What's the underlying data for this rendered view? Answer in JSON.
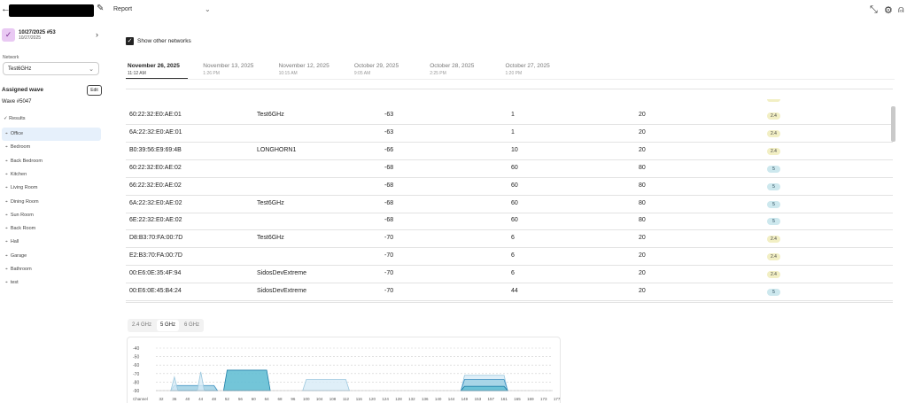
{
  "header": {
    "report_label": "Report"
  },
  "sidebar": {
    "card_title": "10/27/2025 #53",
    "card_subtitle": "10/27/2025",
    "network_label": "Network",
    "network_value": "Test6GHz",
    "assigned_label": "Assigned wave",
    "edit_label": "Edit",
    "wave_label": "Wave #5047",
    "results_label": "Results",
    "rooms": [
      "Office",
      "Bedroom",
      "Back Bedroom",
      "Kitchen",
      "Living Room",
      "Dining Room",
      "Sun Room",
      "Back Room",
      "Hall",
      "Garage",
      "Bathroom",
      "test"
    ],
    "active_room": "Office"
  },
  "main": {
    "show_other_label": "Show other networks",
    "show_other_checked": true,
    "dates": [
      {
        "date": "November 26, 2025",
        "time": "11:12 AM",
        "active": true
      },
      {
        "date": "November 13, 2025",
        "time": "1:26 PM"
      },
      {
        "date": "November 12, 2025",
        "time": "10:15 AM"
      },
      {
        "date": "October 29, 2025",
        "time": "9:05 AM"
      },
      {
        "date": "October 28, 2025",
        "time": "2:25 PM"
      },
      {
        "date": "October 27, 2025",
        "time": "1:20 PM"
      }
    ],
    "rows": [
      {
        "mac": "60:22:32:E0:AE:01",
        "ssid": "Test6GHz",
        "rssi": "-63",
        "channel": "1",
        "width": "20",
        "band": "2.4"
      },
      {
        "mac": "6A:22:32:E0:AE:01",
        "ssid": "",
        "rssi": "-63",
        "channel": "1",
        "width": "20",
        "band": "2.4"
      },
      {
        "mac": "B0:39:56:E9:69:4B",
        "ssid": "LONGHORN1",
        "rssi": "-66",
        "channel": "10",
        "width": "20",
        "band": "2.4"
      },
      {
        "mac": "60:22:32:E0:AE:02",
        "ssid": "",
        "rssi": "-68",
        "channel": "60",
        "width": "80",
        "band": "5"
      },
      {
        "mac": "66:22:32:E0:AE:02",
        "ssid": "",
        "rssi": "-68",
        "channel": "60",
        "width": "80",
        "band": "5"
      },
      {
        "mac": "6A:22:32:E0:AE:02",
        "ssid": "Test6GHz",
        "rssi": "-68",
        "channel": "60",
        "width": "80",
        "band": "5"
      },
      {
        "mac": "6E:22:32:E0:AE:02",
        "ssid": "",
        "rssi": "-68",
        "channel": "60",
        "width": "80",
        "band": "5"
      },
      {
        "mac": "D8:B3:70:FA:00:7D",
        "ssid": "Test6GHz",
        "rssi": "-70",
        "channel": "6",
        "width": "20",
        "band": "2.4"
      },
      {
        "mac": "E2:B3:70:FA:00:7D",
        "ssid": "",
        "rssi": "-70",
        "channel": "6",
        "width": "20",
        "band": "2.4"
      },
      {
        "mac": "00:E6:0E:35:4F:94",
        "ssid": "SidosDevExtreme",
        "rssi": "-70",
        "channel": "6",
        "width": "20",
        "band": "2.4"
      },
      {
        "mac": "00:E6:0E:45:B4:24",
        "ssid": "SidosDevExtreme",
        "rssi": "-70",
        "channel": "44",
        "width": "20",
        "band": "5"
      }
    ],
    "band_tabs": [
      "2.4 GHz",
      "5 GHz",
      "6 GHz"
    ],
    "active_band": "5 GHz"
  },
  "chart_data": {
    "type": "area",
    "xlabel": "Channel",
    "y_ticks": [
      -40,
      -50,
      -60,
      -70,
      -80,
      -90
    ],
    "ylim": [
      -90,
      -40
    ],
    "x_ticks": [
      "32",
      "36",
      "40",
      "44",
      "48",
      "52",
      "56",
      "60",
      "64",
      "68",
      "96",
      "100",
      "104",
      "108",
      "112",
      "116",
      "120",
      "124",
      "128",
      "132",
      "136",
      "140",
      "144",
      "149",
      "153",
      "157",
      "161",
      "165",
      "169",
      "173",
      "177"
    ],
    "series": [
      {
        "channels": [
          "36",
          "40",
          "44",
          "48"
        ],
        "level": -84,
        "tone": "mid"
      },
      {
        "channels": [
          "36"
        ],
        "level": -74,
        "tone": "light"
      },
      {
        "channels": [
          "44"
        ],
        "level": -68,
        "tone": "light"
      },
      {
        "channels": [
          "52",
          "56",
          "60",
          "64"
        ],
        "level": -66,
        "tone": "dark"
      },
      {
        "channels": [
          "100",
          "104",
          "108",
          "112"
        ],
        "level": -77,
        "tone": "light"
      },
      {
        "channels": [
          "149",
          "153",
          "157",
          "161"
        ],
        "level": -72,
        "tone": "light"
      },
      {
        "channels": [
          "149",
          "153",
          "157",
          "161"
        ],
        "level": -77,
        "tone": "mid"
      },
      {
        "channels": [
          "149",
          "153",
          "157",
          "161"
        ],
        "level": -85,
        "tone": "dark"
      }
    ]
  }
}
